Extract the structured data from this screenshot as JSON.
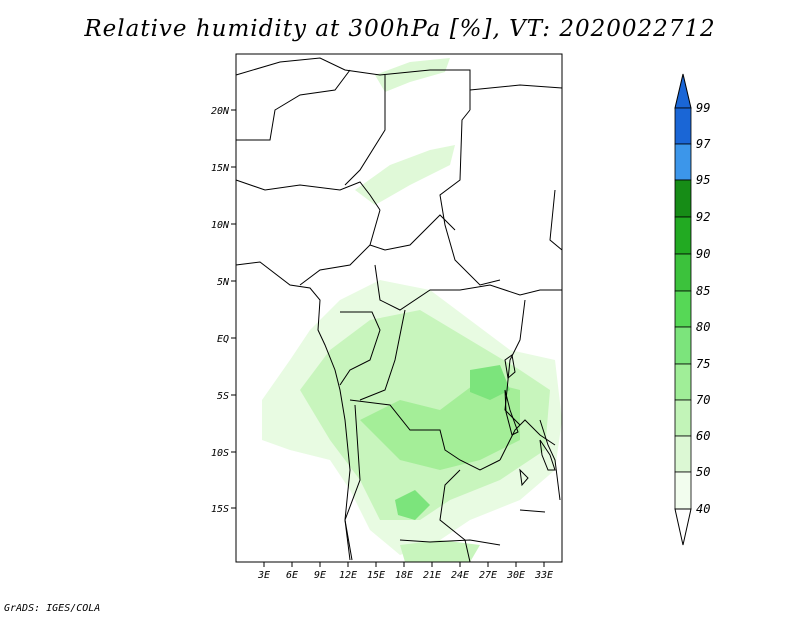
{
  "title": "Relative humidity at 300hPa [%], VT: 2020022712",
  "credit": "GrADS: IGES/COLA",
  "lat_labels": [
    "20N",
    "15N",
    "10N",
    "5N",
    "EQ",
    "5S",
    "10S",
    "15S"
  ],
  "lon_labels": [
    "3E",
    "6E",
    "9E",
    "12E",
    "15E",
    "18E",
    "21E",
    "24E",
    "27E",
    "30E",
    "33E"
  ],
  "colorbar": {
    "levels": [
      "99",
      "97",
      "95",
      "92",
      "90",
      "85",
      "80",
      "75",
      "70",
      "60",
      "50",
      "40"
    ],
    "colors": [
      "#1a66d6",
      "#2a7de0",
      "#3c96ea",
      "#168c16",
      "#22aa22",
      "#3cc23c",
      "#56d856",
      "#7ce47c",
      "#a0ee98",
      "#c2f4b8",
      "#dcf8d4",
      "#f2fdee"
    ]
  },
  "map": {
    "region": "Central Africa",
    "lat_range": [
      "20S",
      "24N"
    ],
    "lon_range": [
      "0E",
      "35E"
    ]
  }
}
